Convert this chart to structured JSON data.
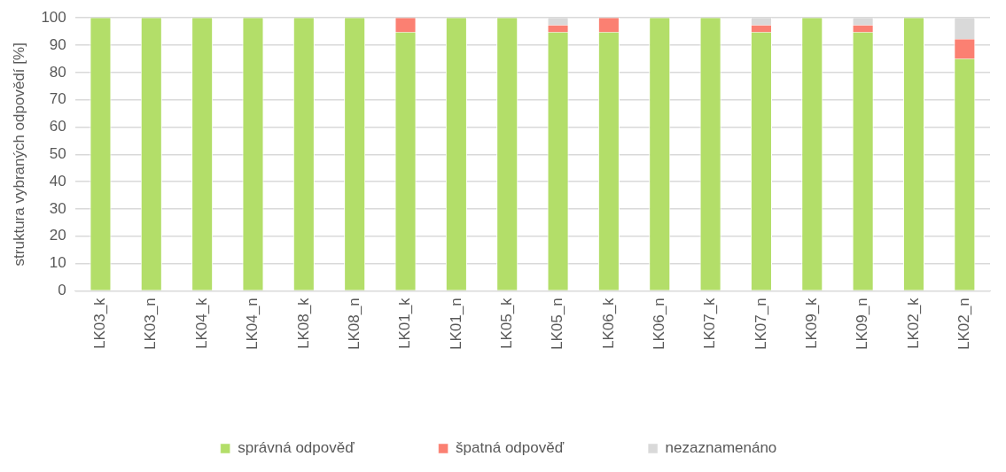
{
  "chart_data": {
    "type": "bar",
    "stacked": true,
    "ylabel": "struktura vybraných odpovědí [%]",
    "categories": [
      "LK03_k",
      "LK03_n",
      "LK04_k",
      "LK04_n",
      "LK08_k",
      "LK08_n",
      "LK01_k",
      "LK01_n",
      "LK05_k",
      "LK05_n",
      "LK06_k",
      "LK06_n",
      "LK07_k",
      "LK07_n",
      "LK09_k",
      "LK09_n",
      "LK02_k",
      "LK02_n"
    ],
    "series": [
      {
        "name": "správná odpověď",
        "color": "#b3de69",
        "values": [
          100,
          100,
          100,
          100,
          100,
          100,
          94.7,
          100,
          100,
          94.7,
          94.7,
          100,
          100,
          94.7,
          100,
          94.7,
          100,
          85.0
        ]
      },
      {
        "name": "špatná odpověď",
        "color": "#fb8072",
        "values": [
          0,
          0,
          0,
          0,
          0,
          0,
          5.3,
          0,
          0,
          2.6,
          5.3,
          0,
          0,
          2.6,
          0,
          2.6,
          0,
          7.2
        ]
      },
      {
        "name": "nezaznamenáno",
        "color": "#d9d9d9",
        "values": [
          0,
          0,
          0,
          0,
          0,
          0,
          0,
          0,
          0,
          2.7,
          0,
          0,
          0,
          2.7,
          0,
          2.7,
          0,
          7.8
        ]
      }
    ],
    "ylim": [
      0,
      100
    ],
    "yticks": [
      0,
      10,
      20,
      30,
      40,
      50,
      60,
      70,
      80,
      90,
      100
    ],
    "grid": "y",
    "legend": "bottom"
  }
}
